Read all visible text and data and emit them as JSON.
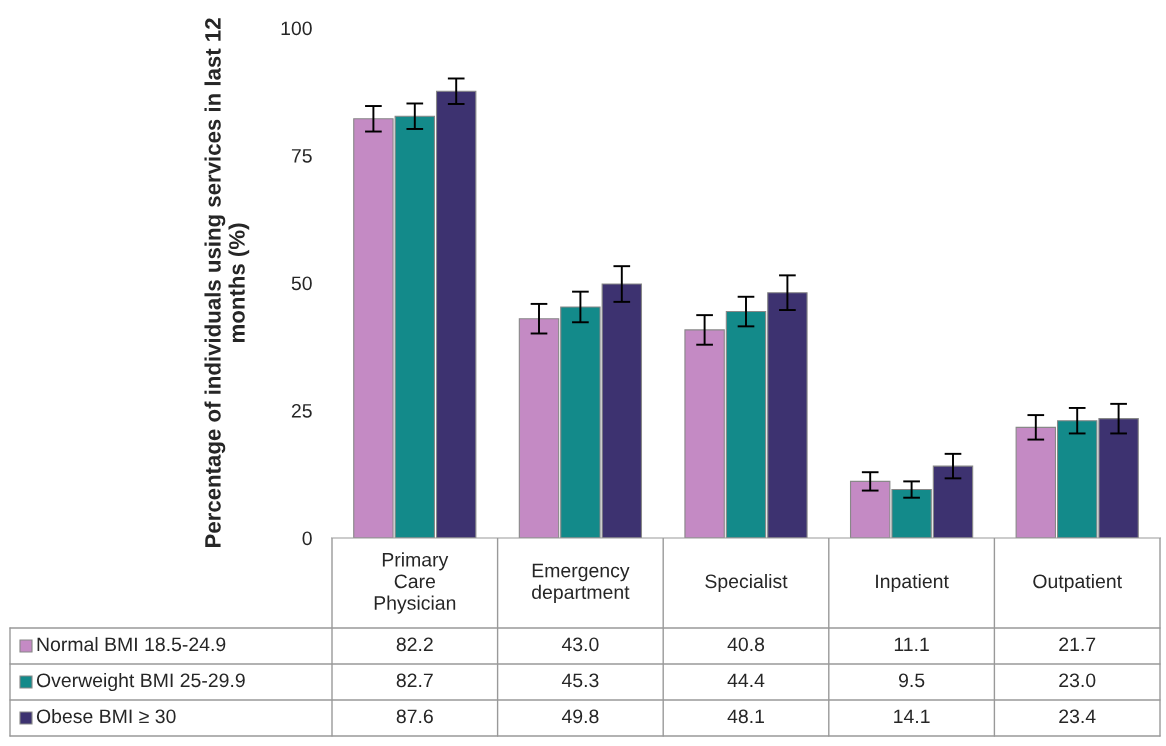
{
  "chart_data": {
    "type": "bar",
    "ylabel": "Percentage of individuals using services in last 12 months (%)",
    "categories": [
      "Primary\nCare\nPhysician",
      "Emergency\ndepartment",
      "Specialist",
      "Inpatient",
      "Outpatient"
    ],
    "series": [
      {
        "name": "Normal BMI 18.5-24.9",
        "color": "#c48ac4",
        "values": [
          82.2,
          43.0,
          40.8,
          11.1,
          21.7
        ],
        "errors": [
          2.5,
          2.9,
          2.9,
          1.8,
          2.4
        ],
        "value_labels": [
          "82.2",
          "43.0",
          "40.8",
          "11.1",
          "21.7"
        ]
      },
      {
        "name": "Overweight BMI 25-29.9",
        "color": "#138a8a",
        "values": [
          82.7,
          45.3,
          44.4,
          9.5,
          23.0
        ],
        "errors": [
          2.5,
          3.0,
          2.9,
          1.6,
          2.5
        ],
        "value_labels": [
          "82.7",
          "45.3",
          "44.4",
          "9.5",
          "23.0"
        ]
      },
      {
        "name": "Obese BMI ≥ 30",
        "color": "#3d3270",
        "values": [
          87.6,
          49.8,
          48.1,
          14.1,
          23.4
        ],
        "errors": [
          2.5,
          3.5,
          3.4,
          2.4,
          2.9
        ],
        "value_labels": [
          "87.6",
          "49.8",
          "48.1",
          "14.1",
          "23.4"
        ]
      }
    ],
    "ylim": [
      0,
      100
    ],
    "yticks": [
      0,
      25,
      50,
      75,
      100
    ],
    "grid": false,
    "legend": "bottom"
  }
}
